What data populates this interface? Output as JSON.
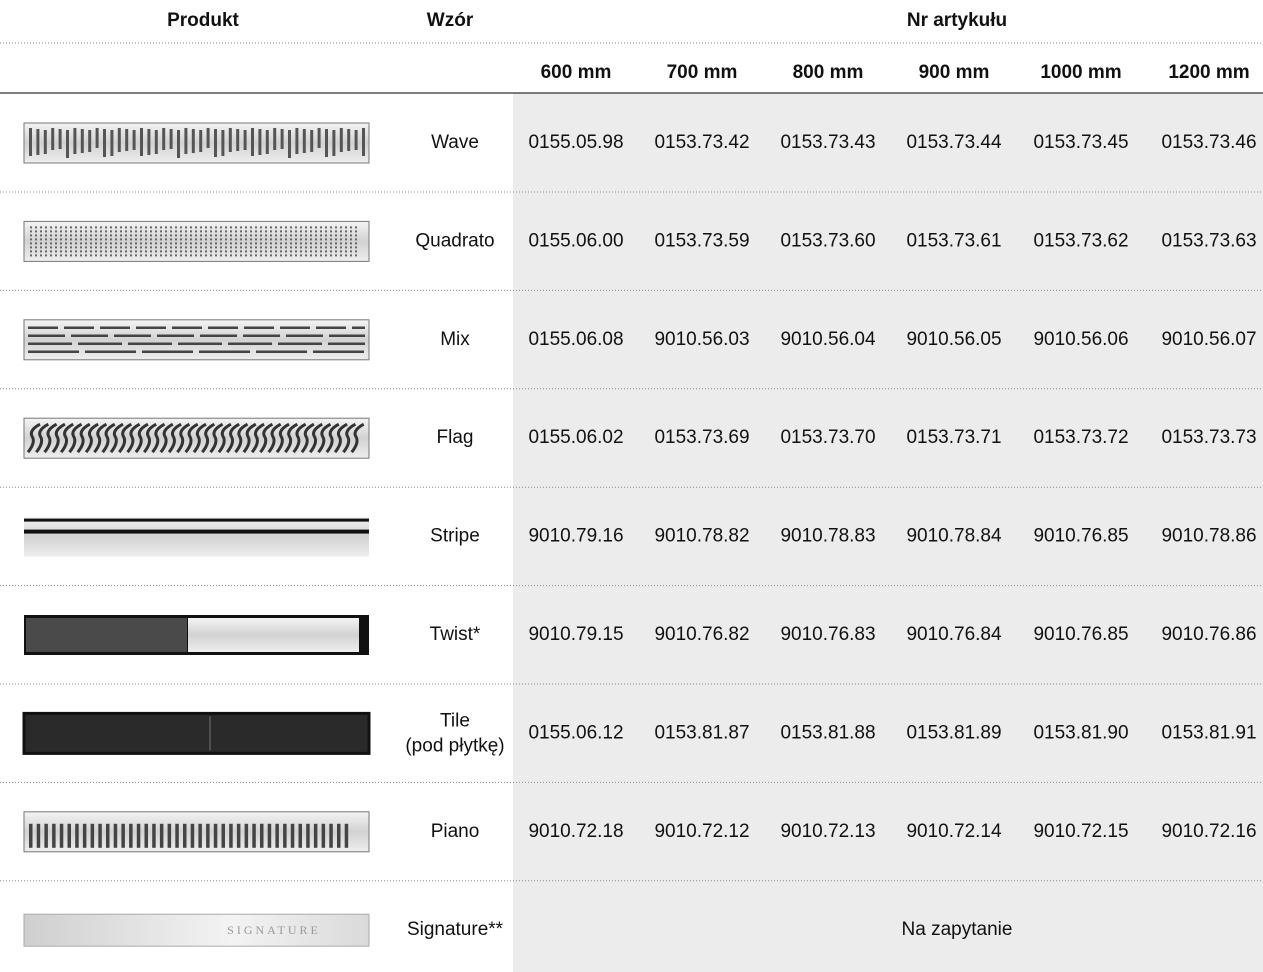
{
  "header": {
    "product": "Produkt",
    "pattern": "Wzór",
    "article_no": "Nr artykułu",
    "sizes": [
      "600 mm",
      "700 mm",
      "800 mm",
      "900 mm",
      "1000 mm",
      "1200 mm"
    ]
  },
  "rows": [
    {
      "pattern": "Wave",
      "articles": [
        "0155.05.98",
        "0153.73.42",
        "0153.73.43",
        "0153.73.44",
        "0153.73.45",
        "0153.73.46"
      ]
    },
    {
      "pattern": "Quadrato",
      "articles": [
        "0155.06.00",
        "0153.73.59",
        "0153.73.60",
        "0153.73.61",
        "0153.73.62",
        "0153.73.63"
      ]
    },
    {
      "pattern": "Mix",
      "articles": [
        "0155.06.08",
        "9010.56.03",
        "9010.56.04",
        "9010.56.05",
        "9010.56.06",
        "9010.56.07"
      ]
    },
    {
      "pattern": "Flag",
      "articles": [
        "0155.06.02",
        "0153.73.69",
        "0153.73.70",
        "0153.73.71",
        "0153.73.72",
        "0153.73.73"
      ]
    },
    {
      "pattern": "Stripe",
      "articles": [
        "9010.79.16",
        "9010.78.82",
        "9010.78.83",
        "9010.78.84",
        "9010.76.85",
        "9010.78.86"
      ]
    },
    {
      "pattern": "Twist*",
      "articles": [
        "9010.79.15",
        "9010.76.82",
        "9010.76.83",
        "9010.76.84",
        "9010.76.85",
        "9010.76.86"
      ]
    },
    {
      "pattern": "Tile",
      "pattern_note": "(pod płytkę)",
      "articles": [
        "0155.06.12",
        "0153.81.87",
        "0153.81.88",
        "0153.81.89",
        "0153.81.90",
        "0153.81.91"
      ]
    },
    {
      "pattern": "Piano",
      "articles": [
        "9010.72.18",
        "9010.72.12",
        "9010.72.13",
        "9010.72.14",
        "9010.72.15",
        "9010.72.16"
      ]
    },
    {
      "pattern": "Signature**",
      "image_label": "SIGNATURE",
      "note": "Na zapytanie"
    }
  ]
}
